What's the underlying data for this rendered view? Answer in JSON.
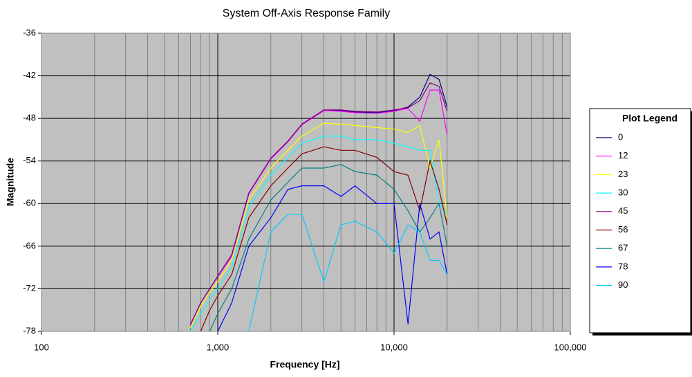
{
  "chart_data": {
    "type": "line",
    "title": "System Off-Axis Response Family",
    "x_label": "Frequency [Hz]",
    "y_label": "Magnitude",
    "legend_title": "Plot Legend",
    "log_x": true,
    "grid": true,
    "legend_position": "right",
    "plot_background": "#c0c0c0",
    "xlim": [
      100,
      100000
    ],
    "xticks": [
      100,
      {
        "value": 1000,
        "label": "1,000"
      },
      {
        "value": 10000,
        "label": "10,000"
      },
      {
        "value": 100000,
        "label": "100,000"
      }
    ],
    "ylim": [
      -78,
      -36
    ],
    "yticks": [
      -36,
      -42,
      -48,
      -54,
      -60,
      -66,
      -72,
      -78
    ],
    "x": [
      700,
      800,
      900,
      1000,
      1200,
      1500,
      2000,
      2500,
      3000,
      4000,
      5000,
      6000,
      8000,
      10000,
      12000,
      14000,
      16000,
      18000,
      20000
    ],
    "series": [
      {
        "name": "0",
        "color": "#000080",
        "values": [
          -77.1,
          -74,
          -72,
          -70.3,
          -67.4,
          -58.6,
          -53.7,
          -51.3,
          -48.9,
          -46.9,
          -46.9,
          -47.1,
          -47.2,
          -46.9,
          -46.4,
          -45,
          -41.8,
          -42.5,
          -46.4
        ]
      },
      {
        "name": "12",
        "color": "#ff00ff",
        "values": [
          -77.1,
          -74,
          -72,
          -70.3,
          -67.4,
          -58.6,
          -53.7,
          -51.3,
          -48.9,
          -46.9,
          -47,
          -47.2,
          -47.3,
          -47,
          -46.6,
          -48.4,
          -44,
          -44,
          -50.3
        ]
      },
      {
        "name": "23",
        "color": "#ffff00",
        "values": [
          -77.5,
          -74.5,
          -72.5,
          -71,
          -68,
          -59.5,
          -55,
          -52.5,
          -50.5,
          -48.7,
          -48.8,
          -49,
          -49.3,
          -49.5,
          -50,
          -49,
          -55,
          -51,
          -62
        ]
      },
      {
        "name": "30",
        "color": "#00ffff",
        "values": [
          -78,
          -75.5,
          -73.5,
          -72,
          -69,
          -60.5,
          -56,
          -53.5,
          -51.5,
          -50.5,
          -50.5,
          -51,
          -51,
          -51.5,
          -52,
          -52.5,
          -52.5,
          -60,
          -61.5
        ]
      },
      {
        "name": "45",
        "color": "#800080",
        "values": [
          -77,
          -74,
          -72,
          -70.2,
          -67.2,
          -58.5,
          -53.6,
          -51.2,
          -48.8,
          -46.8,
          -46.8,
          -47,
          -47.1,
          -46.8,
          -46.5,
          -45.5,
          -43,
          -43.5,
          -47
        ]
      },
      {
        "name": "56",
        "color": "#800000",
        "values": [
          null,
          -78,
          -75,
          -73,
          -70,
          -62,
          -57.5,
          -55,
          -53,
          -52,
          -52.5,
          -52.5,
          -53.5,
          -55.5,
          -56,
          -61,
          -54,
          -58,
          -63
        ]
      },
      {
        "name": "67",
        "color": "#008080",
        "values": [
          null,
          null,
          -78,
          -75.5,
          -72,
          -65,
          -59.5,
          -57,
          -55,
          -55,
          -54.5,
          -55.5,
          -56,
          -58,
          -61,
          -64,
          -62,
          -60,
          -66
        ]
      },
      {
        "name": "78",
        "color": "#0000ff",
        "values": [
          null,
          null,
          null,
          -78,
          -74,
          -66,
          -62,
          -58,
          -57.5,
          -57.5,
          -59,
          -57.5,
          -60,
          -60,
          -77,
          -60,
          -65,
          -64,
          -70
        ]
      },
      {
        "name": "90",
        "color": "#00ccff",
        "values": [
          null,
          null,
          null,
          null,
          null,
          -78,
          -64,
          -61.5,
          -61.5,
          -71,
          -63,
          -62.5,
          -64,
          -67,
          -63,
          -64,
          -68,
          -68,
          -70
        ]
      }
    ]
  }
}
